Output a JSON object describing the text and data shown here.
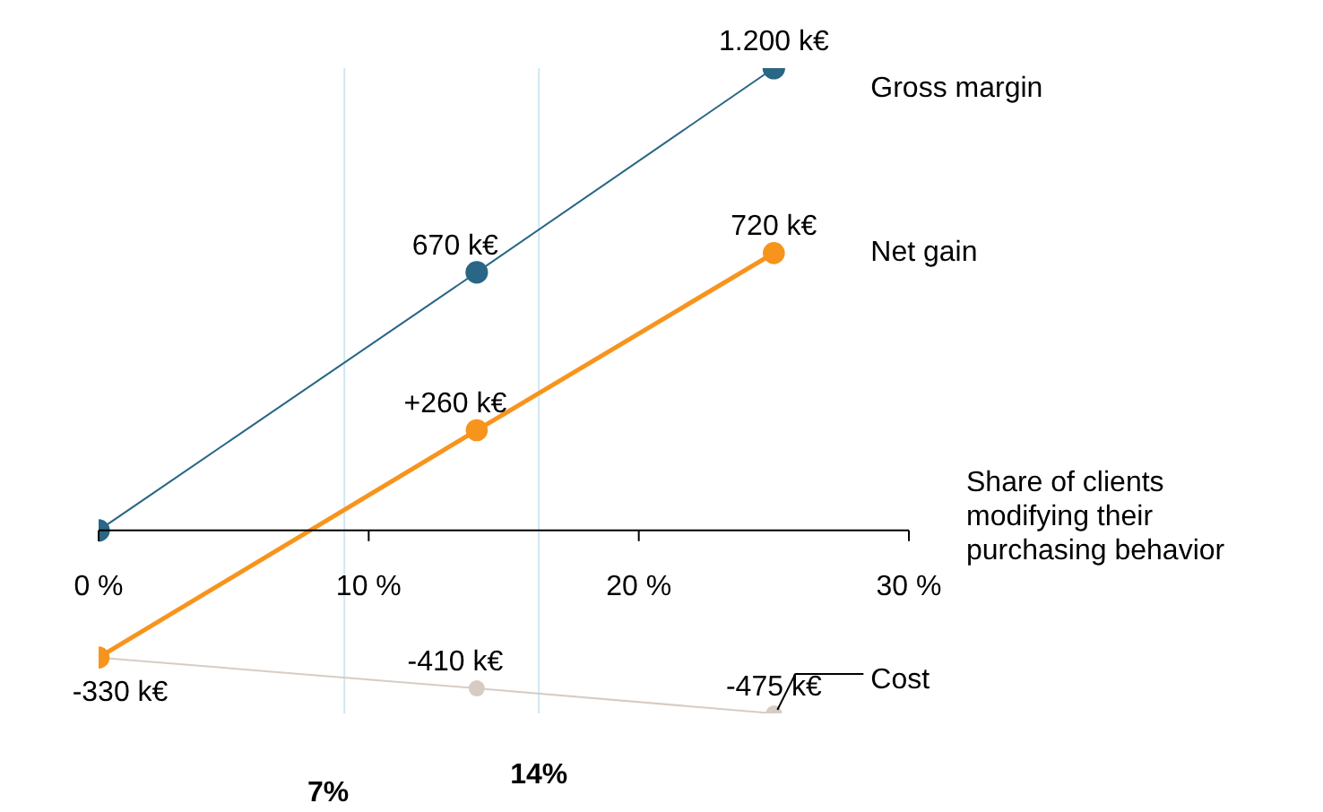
{
  "chart_data": {
    "type": "line",
    "xlabel": "Share of clients modifying their purchasing behavior",
    "x": [
      0,
      14,
      25
    ],
    "xlim": [
      0,
      30
    ],
    "xticks": [
      {
        "value": 0,
        "label": "0 %"
      },
      {
        "value": 10,
        "label": "10 %"
      },
      {
        "value": 20,
        "label": "20 %"
      },
      {
        "value": 30,
        "label": "30 %"
      }
    ],
    "series": [
      {
        "name": "Gross margin",
        "color": "#2a6685",
        "values": [
          0,
          670,
          1200
        ],
        "value_labels": [
          null,
          "670 k€",
          "1.200 k€"
        ]
      },
      {
        "name": "Net gain",
        "color": "#f7941d",
        "values": [
          -330,
          260,
          720
        ],
        "value_labels": [
          null,
          "+260 k€",
          "720 k€"
        ]
      },
      {
        "name": "Cost",
        "color": "#d6ccc4",
        "values": [
          -330,
          -410,
          -475
        ],
        "value_labels": [
          "-330 k€",
          "-410 k€",
          "-475 k€"
        ]
      }
    ],
    "ref_lines": [
      {
        "axis": "x",
        "value": 9.1,
        "color": "#cfe6f3"
      },
      {
        "axis": "x",
        "value": 16.3,
        "color": "#cfe6f3"
      }
    ],
    "annotations": [
      "7%",
      "14%"
    ],
    "marker": "circle",
    "grid": false
  }
}
